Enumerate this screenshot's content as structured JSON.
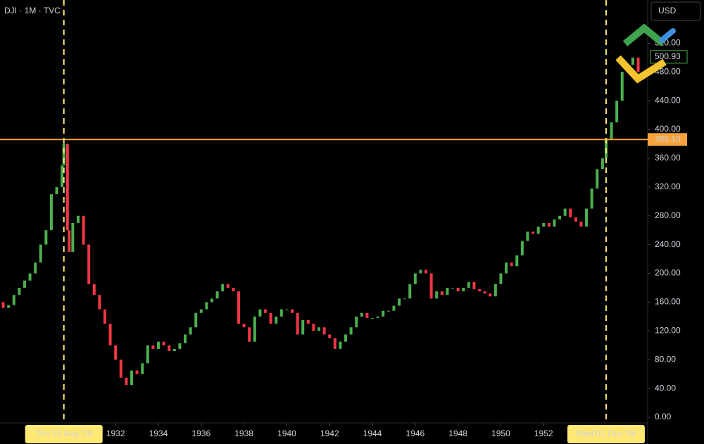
{
  "chart_data": {
    "type": "candlestick",
    "title": "DJI · 1M · TVC",
    "currency": "USD",
    "x": [
      "1926-07",
      "1926-10",
      "1927-01",
      "1927-04",
      "1927-07",
      "1927-10",
      "1928-01",
      "1928-04",
      "1928-07",
      "1928-10",
      "1929-01",
      "1929-04",
      "1929-07",
      "1929-08",
      "1929-10",
      "1929-11",
      "1930-01",
      "1930-04",
      "1930-07",
      "1930-10",
      "1931-01",
      "1931-04",
      "1931-07",
      "1931-10",
      "1932-01",
      "1932-04",
      "1932-07",
      "1932-10",
      "1933-01",
      "1933-04",
      "1933-07",
      "1933-10",
      "1934-01",
      "1934-04",
      "1934-07",
      "1934-10",
      "1935-01",
      "1935-04",
      "1935-07",
      "1935-10",
      "1936-01",
      "1936-04",
      "1936-07",
      "1936-10",
      "1937-01",
      "1937-04",
      "1937-07",
      "1937-10",
      "1938-01",
      "1938-04",
      "1938-07",
      "1938-10",
      "1939-01",
      "1939-04",
      "1939-07",
      "1939-10",
      "1940-01",
      "1940-04",
      "1940-07",
      "1940-10",
      "1941-01",
      "1941-04",
      "1941-07",
      "1941-10",
      "1942-01",
      "1942-04",
      "1942-07",
      "1942-10",
      "1943-01",
      "1943-04",
      "1943-07",
      "1943-10",
      "1944-01",
      "1944-04",
      "1944-07",
      "1944-10",
      "1945-01",
      "1945-04",
      "1945-07",
      "1945-10",
      "1946-01",
      "1946-04",
      "1946-07",
      "1946-10",
      "1947-01",
      "1947-04",
      "1947-07",
      "1947-10",
      "1948-01",
      "1948-04",
      "1948-07",
      "1948-10",
      "1949-01",
      "1949-04",
      "1949-07",
      "1949-10",
      "1950-01",
      "1950-04",
      "1950-07",
      "1950-10",
      "1951-01",
      "1951-04",
      "1951-07",
      "1951-10",
      "1952-01",
      "1952-04",
      "1952-07",
      "1952-10",
      "1953-01",
      "1953-04",
      "1953-07",
      "1953-10",
      "1954-01",
      "1954-04",
      "1954-07",
      "1954-10",
      "1954-12",
      "1955-03",
      "1955-06",
      "1955-09",
      "1955-12",
      "1956-03",
      "1956-06",
      "1956-09"
    ],
    "values": [
      160,
      152,
      156,
      170,
      180,
      190,
      200,
      215,
      240,
      260,
      310,
      320,
      350,
      380,
      260,
      230,
      270,
      280,
      240,
      185,
      170,
      150,
      130,
      100,
      80,
      55,
      45,
      65,
      60,
      75,
      100,
      95,
      105,
      100,
      92,
      95,
      103,
      115,
      125,
      145,
      150,
      160,
      165,
      175,
      185,
      180,
      175,
      130,
      125,
      105,
      140,
      150,
      145,
      130,
      140,
      150,
      150,
      145,
      115,
      135,
      130,
      120,
      125,
      115,
      110,
      95,
      105,
      115,
      125,
      140,
      145,
      138,
      138,
      140,
      148,
      148,
      155,
      165,
      165,
      185,
      200,
      205,
      200,
      165,
      175,
      170,
      180,
      180,
      175,
      180,
      188,
      178,
      175,
      172,
      168,
      185,
      200,
      215,
      210,
      225,
      245,
      258,
      255,
      265,
      270,
      265,
      275,
      280,
      290,
      278,
      272,
      265,
      290,
      318,
      345,
      360,
      386,
      410,
      440,
      480,
      490,
      500,
      480,
      475
    ],
    "up_color": "#4caf50",
    "down_color": "#f23645",
    "xlim": [
      1926.6,
      1956.86
    ],
    "xticks": [
      1932,
      1934,
      1936,
      1938,
      1940,
      1942,
      1944,
      1946,
      1948,
      1950,
      1952
    ],
    "ylim": [
      -6.85,
      580
    ],
    "yticks": [
      {
        "value": 0,
        "label": "0.00"
      },
      {
        "value": 40,
        "label": "40.00"
      },
      {
        "value": 80,
        "label": "80.00"
      },
      {
        "value": 120,
        "label": "120.00"
      },
      {
        "value": 160,
        "label": "160.00"
      },
      {
        "value": 200,
        "label": "200.00"
      },
      {
        "value": 240,
        "label": "240.00"
      },
      {
        "value": 280,
        "label": "280.00"
      },
      {
        "value": 320,
        "label": "320.00"
      },
      {
        "value": 360,
        "label": "360.00"
      },
      {
        "value": 400,
        "label": "400.00"
      },
      {
        "value": 440,
        "label": "440.00"
      },
      {
        "value": 480,
        "label": "480.00"
      },
      {
        "value": 520,
        "label": "520.00"
      }
    ],
    "hline": {
      "value": 386.1,
      "label": "386.10",
      "color": "#f7a13a"
    },
    "last_price": 500.93,
    "vlines": [
      {
        "date": "1929-08",
        "label": "Thu 01 Aug '29"
      },
      {
        "date": "1954-12",
        "label": "Wed 01 Dec '54"
      }
    ],
    "vline_color": "#ffe873"
  }
}
